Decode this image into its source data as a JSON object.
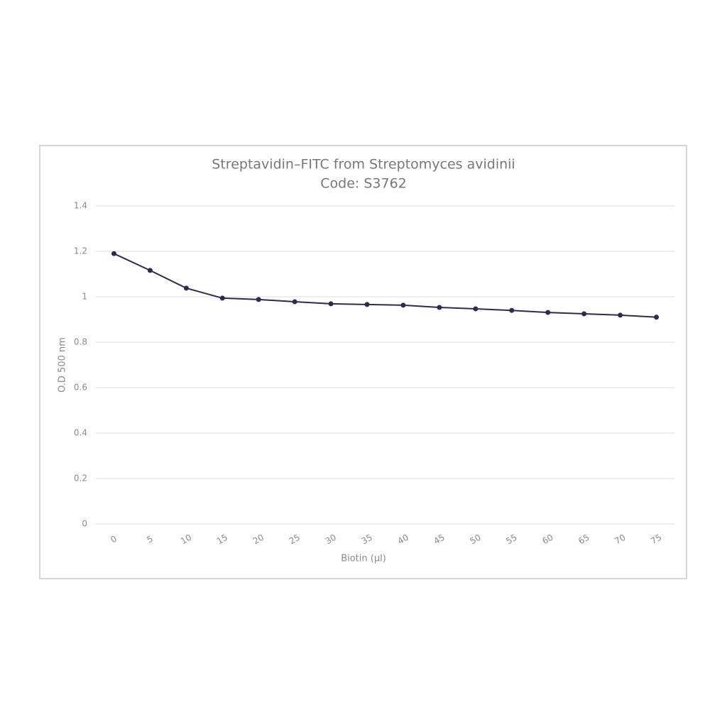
{
  "chart_data": {
    "type": "line",
    "title": [
      "Streptavidin–FITC from Streptomyces avidinii",
      "Code: S3762"
    ],
    "x_label": "Biotin (µl)",
    "y_label": "O.D 500 nm",
    "categories": [
      "0",
      "5",
      "10",
      "15",
      "20",
      "25",
      "30",
      "35",
      "40",
      "45",
      "50",
      "55",
      "60",
      "65",
      "70",
      "75"
    ],
    "values": [
      1.19,
      1.116,
      1.038,
      0.994,
      0.988,
      0.978,
      0.969,
      0.966,
      0.963,
      0.953,
      0.947,
      0.94,
      0.931,
      0.925,
      0.919,
      0.91
    ],
    "color": "#2f2a4f",
    "ylim": [
      0,
      1.4
    ],
    "yticks": [
      0,
      0.2,
      0.4,
      0.6,
      0.8,
      1,
      1.2,
      1.4
    ],
    "grid": true
  }
}
